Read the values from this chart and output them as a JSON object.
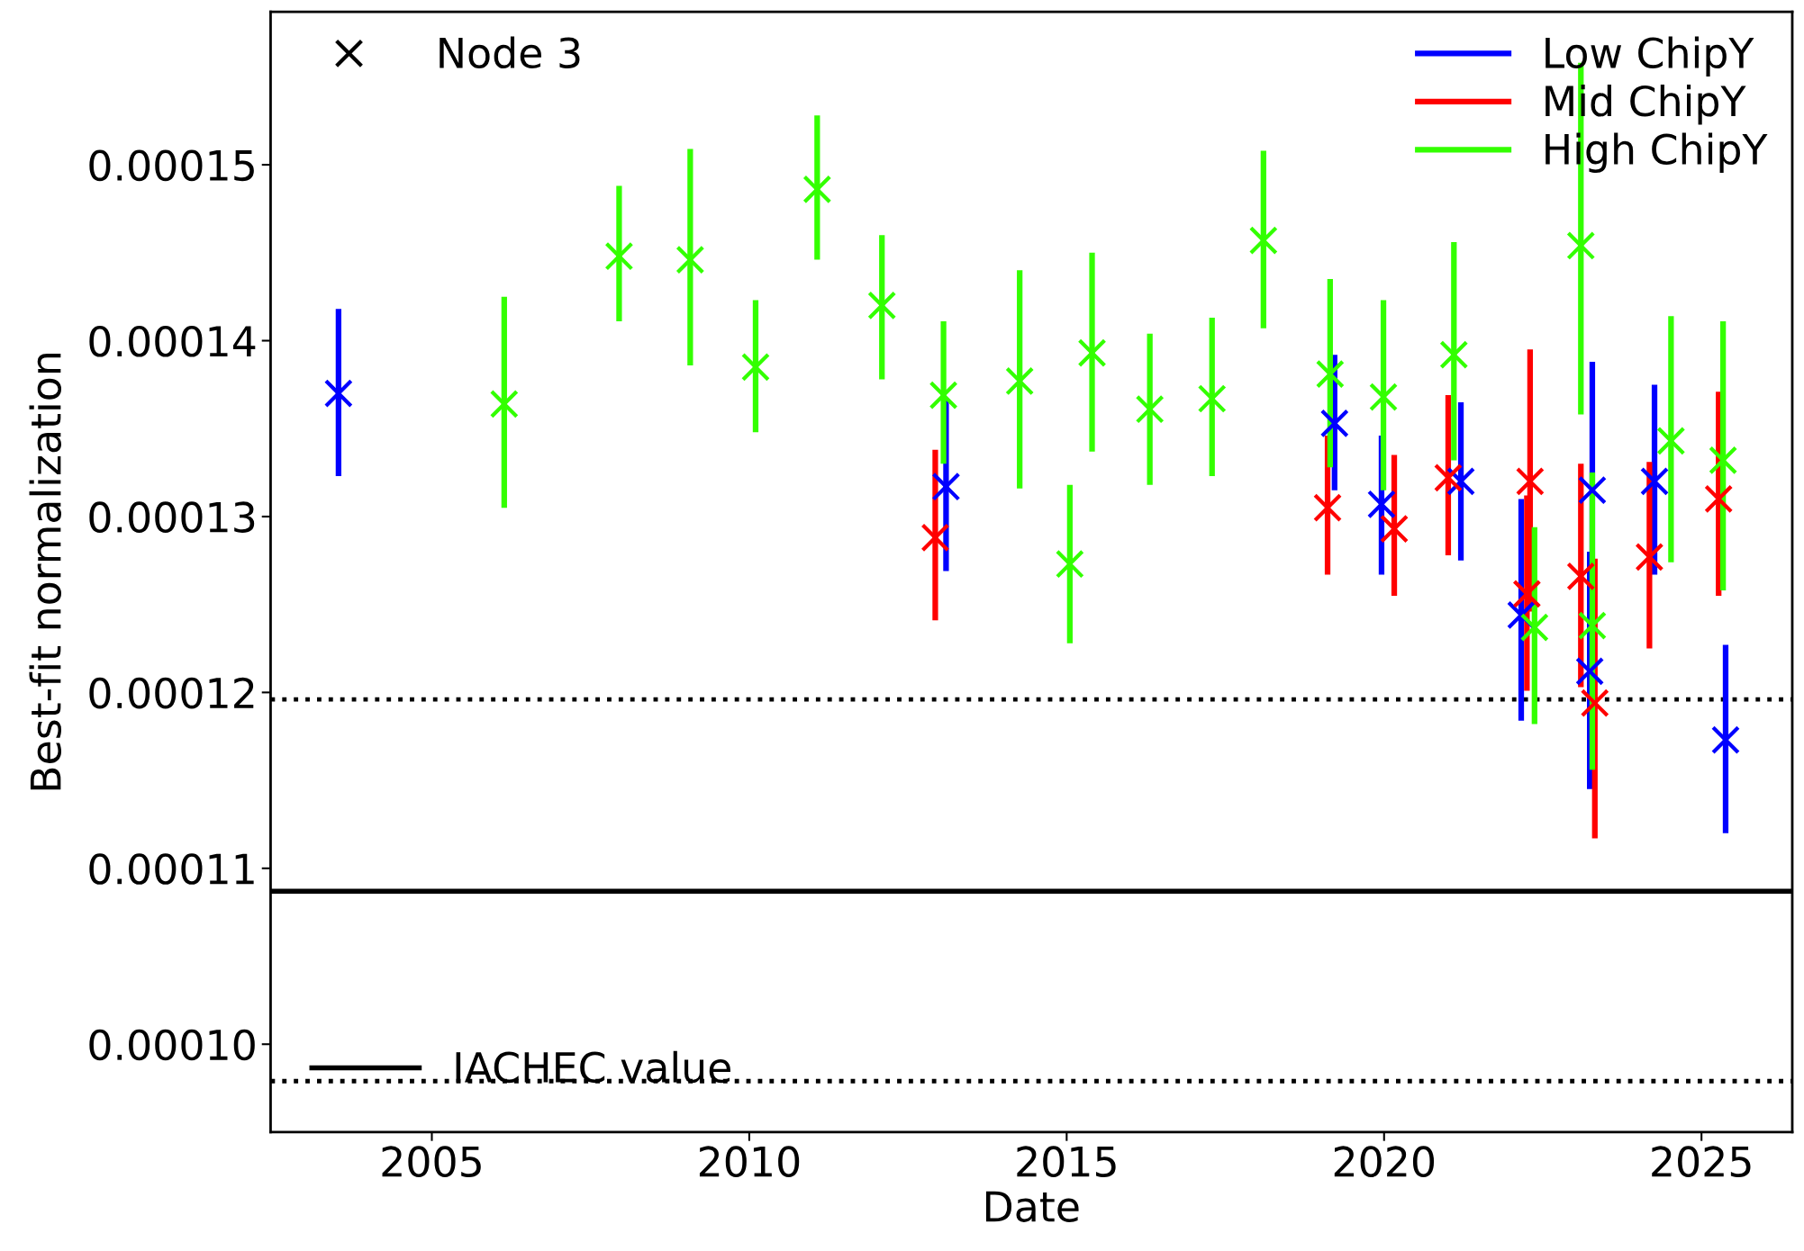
{
  "chart_data": {
    "type": "scatter",
    "xlabel": "Date",
    "ylabel": "Best-fit normalization",
    "xlim": [
      2002.46,
      2026.43
    ],
    "xticks": [
      2005,
      2010,
      2015,
      2020,
      2025
    ],
    "ylim": [
      9.5e-05,
      0.0001587
    ],
    "yticks": [
      {
        "value": 0.0001,
        "label": "0.00010"
      },
      {
        "value": 0.00011,
        "label": "0.00011"
      },
      {
        "value": 0.00012,
        "label": "0.00012"
      },
      {
        "value": 0.00013,
        "label": "0.00013"
      },
      {
        "value": 0.00014,
        "label": "0.00014"
      },
      {
        "value": 0.00015,
        "label": "0.00015"
      }
    ],
    "marker": "cross",
    "legend": "top right",
    "grid": false,
    "annotations": [
      "Node 3"
    ],
    "ref_lines": [
      {
        "axis": "y",
        "value": 0.0001087,
        "label": "IACHEC value",
        "color": "#000000",
        "line_style": "solid"
      },
      {
        "axis": "y",
        "value": 0.0001196,
        "color": "#000000",
        "line_style": "dotted"
      },
      {
        "axis": "y",
        "value": 9.79e-05,
        "color": "#000000",
        "line_style": "dotted"
      }
    ],
    "series": [
      {
        "name": "Low ChipY",
        "color": "#0000ff",
        "x": [
          2003.53,
          2013.1,
          2019.22,
          2019.96,
          2021.21,
          2022.16,
          2023.24,
          2023.28,
          2024.26,
          2025.38
        ],
        "values": [
          0.000137,
          0.0001317,
          0.0001353,
          0.0001307,
          0.000132,
          0.0001244,
          0.0001212,
          0.0001315,
          0.000132,
          0.0001173
        ],
        "errors": [
          [
            0.0001323,
            0.0001418
          ],
          [
            0.0001269,
            0.0001366
          ],
          [
            0.0001315,
            0.0001392
          ],
          [
            0.0001267,
            0.0001346
          ],
          [
            0.0001275,
            0.0001365
          ],
          [
            0.0001184,
            0.000131
          ],
          [
            0.0001145,
            0.000128
          ],
          [
            0.0001242,
            0.0001388
          ],
          [
            0.0001267,
            0.0001375
          ],
          [
            0.000112,
            0.0001227
          ]
        ]
      },
      {
        "name": "Mid ChipY",
        "color": "#ff0000",
        "x": [
          2012.93,
          2019.11,
          2020.16,
          2021.01,
          2022.25,
          2022.3,
          2023.1,
          2023.32,
          2024.18,
          2025.27
        ],
        "values": [
          0.0001288,
          0.0001305,
          0.0001293,
          0.0001322,
          0.0001256,
          0.000132,
          0.0001266,
          0.0001194,
          0.0001277,
          0.000131
        ],
        "errors": [
          [
            0.0001241,
            0.0001338
          ],
          [
            0.0001267,
            0.0001346
          ],
          [
            0.0001255,
            0.0001335
          ],
          [
            0.0001278,
            0.0001369
          ],
          [
            0.0001201,
            0.0001312
          ],
          [
            0.0001246,
            0.0001395
          ],
          [
            0.0001203,
            0.000133
          ],
          [
            0.0001117,
            0.0001276
          ],
          [
            0.0001225,
            0.0001331
          ],
          [
            0.0001255,
            0.0001371
          ]
        ]
      },
      {
        "name": "High ChipY",
        "color": "#33ff00",
        "x": [
          2006.14,
          2007.95,
          2009.07,
          2010.1,
          2011.07,
          2012.09,
          2013.06,
          2014.26,
          2015.05,
          2015.4,
          2016.31,
          2017.29,
          2018.1,
          2019.15,
          2019.99,
          2021.1,
          2022.37,
          2023.1,
          2023.28,
          2024.52,
          2025.34
        ],
        "values": [
          0.0001364,
          0.0001448,
          0.0001446,
          0.0001385,
          0.0001486,
          0.000142,
          0.0001369,
          0.0001377,
          0.0001273,
          0.0001393,
          0.0001361,
          0.0001367,
          0.0001457,
          0.0001381,
          0.0001368,
          0.0001392,
          0.0001237,
          0.0001454,
          0.0001238,
          0.0001343,
          0.0001332
        ],
        "errors": [
          [
            0.0001305,
            0.0001425
          ],
          [
            0.0001411,
            0.0001488
          ],
          [
            0.0001386,
            0.0001509
          ],
          [
            0.0001348,
            0.0001423
          ],
          [
            0.0001446,
            0.0001528
          ],
          [
            0.0001378,
            0.000146
          ],
          [
            0.000133,
            0.0001411
          ],
          [
            0.0001316,
            0.000144
          ],
          [
            0.0001228,
            0.0001318
          ],
          [
            0.0001337,
            0.000145
          ],
          [
            0.0001318,
            0.0001404
          ],
          [
            0.0001323,
            0.0001413
          ],
          [
            0.0001407,
            0.0001508
          ],
          [
            0.0001328,
            0.0001435
          ],
          [
            0.0001315,
            0.0001423
          ],
          [
            0.0001332,
            0.0001456
          ],
          [
            0.0001182,
            0.0001294
          ],
          [
            0.0001358,
            0.0001558
          ],
          [
            0.0001156,
            0.0001325
          ],
          [
            0.0001274,
            0.0001414
          ],
          [
            0.0001258,
            0.0001411
          ]
        ]
      }
    ]
  }
}
